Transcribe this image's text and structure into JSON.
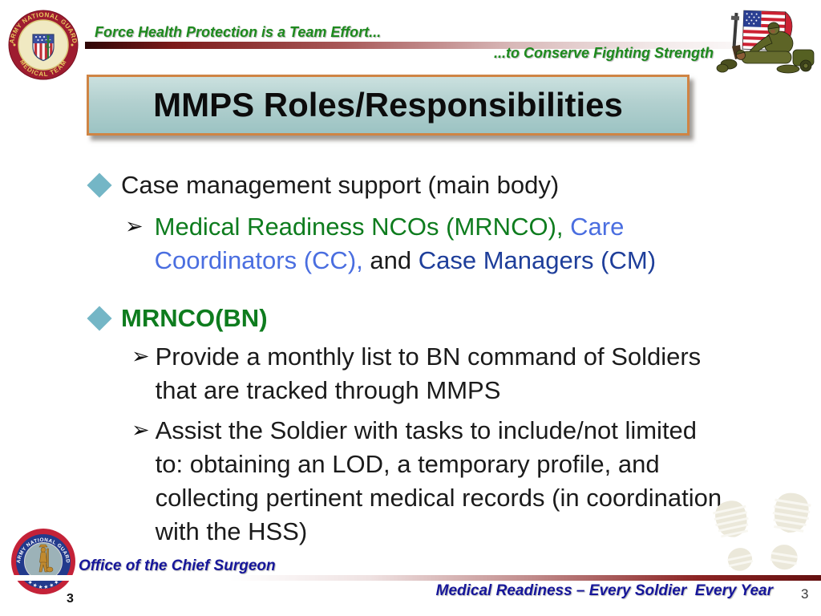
{
  "slide": {
    "title": "MMPS Roles/Responsibilities",
    "page_number_left": "3",
    "page_number_right": "3"
  },
  "header": {
    "tagline_left": "Force Health Protection is a Team Effort...",
    "tagline_right": "...to Conserve Fighting Strength"
  },
  "seals": {
    "top": {
      "ring_top": "ARMY NATIONAL GUARD",
      "ring_bottom": "MEDICAL TEAM"
    },
    "bottom": {
      "ring_top": "ARMY NATIONAL GUARD",
      "stars": "★ ★ ★ ★ ★ ★"
    }
  },
  "content": {
    "bullets": [
      {
        "level": 1,
        "bullet": "diamond",
        "lines": [
          [
            {
              "text": "Case management support (main body)",
              "color": "#1b1b1b"
            }
          ]
        ]
      },
      {
        "level": 2,
        "bullet": "arrow",
        "lines": [
          [
            {
              "text": "Medical Readiness NCOs (MRNCO), ",
              "color": "#0e7c1e"
            },
            {
              "text": "Care",
              "color": "#4a6ee0"
            }
          ],
          [
            {
              "text": "Coordinators (CC), ",
              "color": "#4a6ee0"
            },
            {
              "text": "and ",
              "color": "#1b1b1b"
            },
            {
              "text": "Case Managers (CM)",
              "color": "#1e3e9a"
            }
          ]
        ]
      },
      {
        "level": 1,
        "bullet": "diamond",
        "lines": [
          [
            {
              "text": "MRNCO(BN)",
              "color": "#0e7c1e",
              "bold": true
            }
          ]
        ]
      },
      {
        "level": 2,
        "bullet": "arrow",
        "lines": [
          [
            {
              "text": "Provide a monthly list to BN command of Soldiers",
              "color": "#1b1b1b"
            }
          ],
          [
            {
              "text": "that are tracked through MMPS",
              "color": "#1b1b1b"
            }
          ]
        ]
      },
      {
        "level": 2,
        "bullet": "arrow",
        "lines": [
          [
            {
              "text": "Assist the Soldier with tasks to include/not limited",
              "color": "#1b1b1b"
            }
          ],
          [
            {
              "text": "to: obtaining an LOD, a temporary profile, and",
              "color": "#1b1b1b"
            }
          ],
          [
            {
              "text": "collecting pertinent medical records (in coordination",
              "color": "#1b1b1b"
            }
          ],
          [
            {
              "text": "with the HSS)",
              "color": "#1b1b1b"
            }
          ]
        ]
      }
    ]
  },
  "footer": {
    "office": "Office of the Chief Surgeon",
    "motto": "Medical Readiness – Every Soldier  Every Year"
  },
  "colors": {
    "tagline_green": "#1e8a1e",
    "green_text": "#0e7c1e",
    "light_blue_text": "#4a6ee0",
    "dark_blue_text": "#1e3e9a",
    "body_text": "#1b1b1b",
    "navy_footer": "#16169a",
    "diamond_bullet": "#74b6c6",
    "title_border": "#cf8444",
    "bar_dark_red": "#641010"
  }
}
